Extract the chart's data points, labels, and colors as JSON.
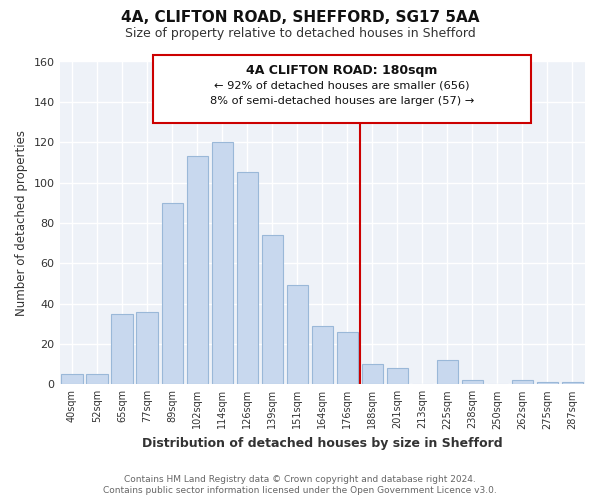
{
  "title": "4A, CLIFTON ROAD, SHEFFORD, SG17 5AA",
  "subtitle": "Size of property relative to detached houses in Shefford",
  "xlabel": "Distribution of detached houses by size in Shefford",
  "ylabel": "Number of detached properties",
  "bar_labels": [
    "40sqm",
    "52sqm",
    "65sqm",
    "77sqm",
    "89sqm",
    "102sqm",
    "114sqm",
    "126sqm",
    "139sqm",
    "151sqm",
    "164sqm",
    "176sqm",
    "188sqm",
    "201sqm",
    "213sqm",
    "225sqm",
    "238sqm",
    "250sqm",
    "262sqm",
    "275sqm",
    "287sqm"
  ],
  "bar_values": [
    5,
    5,
    35,
    36,
    90,
    113,
    120,
    105,
    74,
    49,
    29,
    26,
    10,
    8,
    0,
    12,
    2,
    0,
    2,
    1,
    1
  ],
  "bar_color": "#c8d8ee",
  "bar_edge_color": "#9ab8d8",
  "vline_color": "#cc0000",
  "ylim": [
    0,
    160
  ],
  "yticks": [
    0,
    20,
    40,
    60,
    80,
    100,
    120,
    140,
    160
  ],
  "annotation_title": "4A CLIFTON ROAD: 180sqm",
  "annotation_line1": "← 92% of detached houses are smaller (656)",
  "annotation_line2": "8% of semi-detached houses are larger (57) →",
  "footer_line1": "Contains HM Land Registry data © Crown copyright and database right 2024.",
  "footer_line2": "Contains public sector information licensed under the Open Government Licence v3.0.",
  "background_color": "#ffffff",
  "plot_bg_color": "#eef2f8"
}
